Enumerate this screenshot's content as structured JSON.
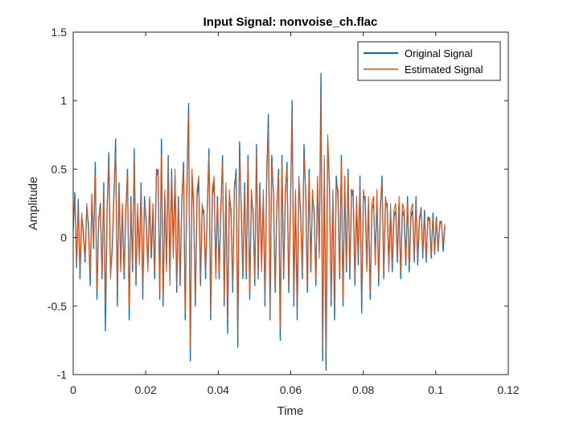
{
  "chart_data": {
    "type": "line",
    "title": "Input Signal: nonvoise_ch.flac",
    "xlabel": "Time",
    "ylabel": "Amplitude",
    "xlim": [
      0,
      0.12
    ],
    "ylim": [
      -1,
      1.5
    ],
    "xticks": [
      0,
      0.02,
      0.04,
      0.06,
      0.08,
      0.1,
      0.12
    ],
    "xtick_labels": [
      "0",
      "0.02",
      "0.04",
      "0.06",
      "0.08",
      "0.1",
      "0.12"
    ],
    "yticks": [
      -1,
      -0.5,
      0,
      0.5,
      1,
      1.5
    ],
    "ytick_labels": [
      "-1",
      "-0.5",
      "0",
      "0.5",
      "1",
      "1.5"
    ],
    "grid": false,
    "legend_position": "top-right",
    "series": [
      {
        "name": "Original Signal",
        "color": "#0072BD",
        "x_range": [
          0,
          0.1025
        ],
        "values": [
          0.05,
          0.33,
          -0.22,
          0.28,
          -0.3,
          0.15,
          0.05,
          -0.18,
          0.22,
          0.1,
          -0.35,
          0.3,
          -0.08,
          0.55,
          -0.45,
          0.12,
          0.25,
          -0.3,
          0.4,
          -0.68,
          0.2,
          0.62,
          -0.25,
          -0.1,
          0.3,
          0.72,
          -0.5,
          0.4,
          -0.2,
          0.2,
          -0.3,
          0.18,
          0.5,
          -0.6,
          0.3,
          -0.25,
          0.65,
          -0.35,
          0.2,
          -0.15,
          0.4,
          -0.45,
          0.3,
          0.1,
          -0.2,
          0.28,
          -0.15,
          0.2,
          -0.3,
          0.45,
          0.5,
          -0.45,
          0.72,
          -0.5,
          0.3,
          -0.2,
          0.6,
          -0.3,
          0.5,
          -0.1,
          0.45,
          -0.4,
          0.3,
          -0.35,
          0.25,
          0.55,
          -0.6,
          0.4,
          0.98,
          -0.9,
          0.45,
          0.2,
          -0.5,
          0.3,
          0.4,
          -0.35,
          0.2,
          0.2,
          -0.3,
          0.2,
          0.65,
          -0.6,
          0.3,
          0.4,
          -0.25,
          0.3,
          -0.3,
          0.2,
          0.6,
          -0.5,
          0.35,
          -0.7,
          0.3,
          0.2,
          -0.4,
          0.35,
          0.5,
          -0.8,
          0.7,
          0.2,
          -0.3,
          0.4,
          -0.3,
          0.6,
          -0.45,
          0.3,
          0.2,
          -0.35,
          0.68,
          -0.3,
          0.4,
          -0.2,
          0.3,
          -0.5,
          0.45,
          0.9,
          -0.6,
          0.6,
          0.3,
          -0.4,
          0.2,
          0.5,
          -0.75,
          0.6,
          -0.3,
          0.3,
          0.55,
          -0.4,
          0.2,
          1.0,
          -0.5,
          0.3,
          -0.6,
          0.4,
          0.2,
          -0.3,
          0.68,
          0.3,
          -0.4,
          0.5,
          -0.25,
          0.3,
          0.2,
          -0.35,
          0.4,
          -0.1,
          1.2,
          -0.9,
          0.5,
          -0.97,
          0.7,
          0.4,
          -0.5,
          0.3,
          -0.6,
          0.45,
          0.3,
          -0.3,
          0.6,
          -0.5,
          0.4,
          -0.25,
          0.5,
          -0.3,
          0.35,
          0.3,
          -0.35,
          0.25,
          -0.2,
          0.45,
          -0.55,
          0.3,
          0.3,
          -0.2,
          0.25,
          -0.45,
          0.2,
          0.25,
          -0.15,
          0.3,
          -0.35,
          0.2,
          0.45,
          -0.3,
          0.25,
          0.25,
          -0.2,
          0.2,
          -0.25,
          0.15,
          0.2,
          -0.18,
          0.25,
          -0.3,
          0.2,
          0.15,
          -0.2,
          0.3,
          -0.25,
          0.15,
          0.2,
          -0.18,
          0.3,
          -0.2,
          0.12,
          0.22,
          -0.15,
          0.2,
          -0.18,
          0.15,
          0.12,
          -0.15,
          0.18,
          -0.12,
          0.15,
          -0.1,
          0.1,
          0.12,
          -0.1,
          0.08
        ]
      },
      {
        "name": "Estimated Signal",
        "color": "#D95319",
        "x_range": [
          0,
          0.1025
        ],
        "values": [
          0.08,
          0.28,
          -0.2,
          0.22,
          -0.25,
          0.18,
          0.0,
          -0.15,
          0.25,
          0.05,
          -0.28,
          0.32,
          -0.05,
          0.45,
          -0.38,
          0.15,
          0.2,
          -0.25,
          0.35,
          -0.5,
          0.25,
          0.55,
          -0.3,
          -0.05,
          0.35,
          0.62,
          -0.4,
          0.35,
          -0.25,
          0.25,
          -0.25,
          0.22,
          0.45,
          -0.5,
          0.25,
          -0.2,
          0.58,
          -0.3,
          0.25,
          -0.2,
          0.35,
          -0.4,
          0.25,
          0.15,
          -0.25,
          0.3,
          -0.1,
          0.25,
          -0.25,
          0.5,
          0.45,
          -0.4,
          0.6,
          -0.45,
          0.35,
          -0.25,
          0.55,
          -0.35,
          0.45,
          -0.15,
          0.5,
          -0.35,
          0.25,
          -0.3,
          0.3,
          0.5,
          -0.55,
          0.35,
          0.9,
          -0.8,
          0.5,
          0.25,
          -0.45,
          0.35,
          0.45,
          -0.3,
          0.25,
          0.15,
          -0.25,
          0.25,
          0.6,
          -0.55,
          0.35,
          0.45,
          -0.3,
          0.25,
          -0.25,
          0.25,
          0.55,
          -0.45,
          0.4,
          -0.6,
          0.35,
          0.15,
          -0.35,
          0.4,
          0.45,
          -0.7,
          0.6,
          0.25,
          -0.25,
          0.35,
          -0.25,
          0.55,
          -0.4,
          0.35,
          0.15,
          -0.3,
          0.62,
          -0.25,
          0.35,
          -0.25,
          0.35,
          -0.45,
          0.4,
          0.8,
          -0.55,
          0.55,
          0.35,
          -0.35,
          0.25,
          0.45,
          -0.65,
          0.55,
          -0.25,
          0.35,
          0.5,
          -0.35,
          0.25,
          0.9,
          -0.45,
          0.35,
          -0.55,
          0.45,
          0.15,
          -0.25,
          0.6,
          0.35,
          -0.35,
          0.45,
          -0.2,
          0.35,
          0.15,
          -0.3,
          0.45,
          -0.15,
          1.04,
          -0.8,
          0.6,
          -0.85,
          0.75,
          0.35,
          -0.45,
          0.35,
          -0.5,
          0.4,
          0.35,
          -0.25,
          0.55,
          -0.45,
          0.45,
          -0.2,
          0.45,
          -0.25,
          0.3,
          0.35,
          -0.3,
          0.3,
          -0.15,
          0.4,
          -0.45,
          0.35,
          0.25,
          -0.25,
          0.3,
          -0.4,
          0.25,
          0.3,
          -0.2,
          0.35,
          -0.3,
          0.25,
          0.4,
          -0.25,
          0.3,
          0.2,
          -0.25,
          0.25,
          -0.2,
          0.2,
          0.25,
          -0.15,
          0.3,
          -0.25,
          0.25,
          0.2,
          -0.15,
          0.25,
          -0.2,
          0.2,
          0.25,
          -0.15,
          0.25,
          -0.15,
          0.15,
          0.2,
          -0.12,
          0.15,
          -0.15,
          0.12,
          0.15,
          -0.12,
          0.15,
          -0.1,
          0.12,
          -0.08,
          0.12,
          0.1,
          -0.05,
          0.1
        ]
      }
    ]
  }
}
